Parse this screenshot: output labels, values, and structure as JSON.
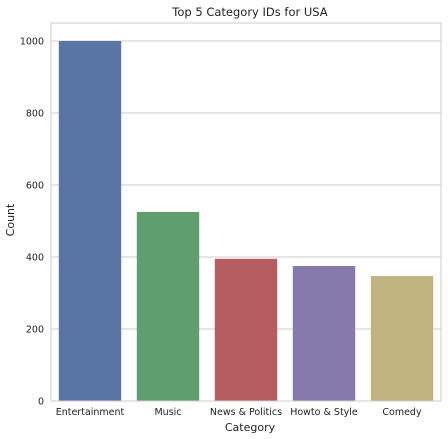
{
  "chart_data": {
    "type": "bar",
    "title": "Top 5 Category IDs for USA",
    "xlabel": "Category",
    "ylabel": "Count",
    "categories": [
      "Entertainment",
      "Music",
      "News & Politics",
      "Howto & Style",
      "Comedy"
    ],
    "values": [
      1000,
      525,
      395,
      375,
      347
    ],
    "colors": [
      "#5975a4",
      "#5f9e6e",
      "#b55d60",
      "#857aab",
      "#c1b37f"
    ],
    "ylim": [
      0,
      1050
    ],
    "yticks": [
      0,
      200,
      400,
      600,
      800,
      1000
    ],
    "grid": true
  }
}
